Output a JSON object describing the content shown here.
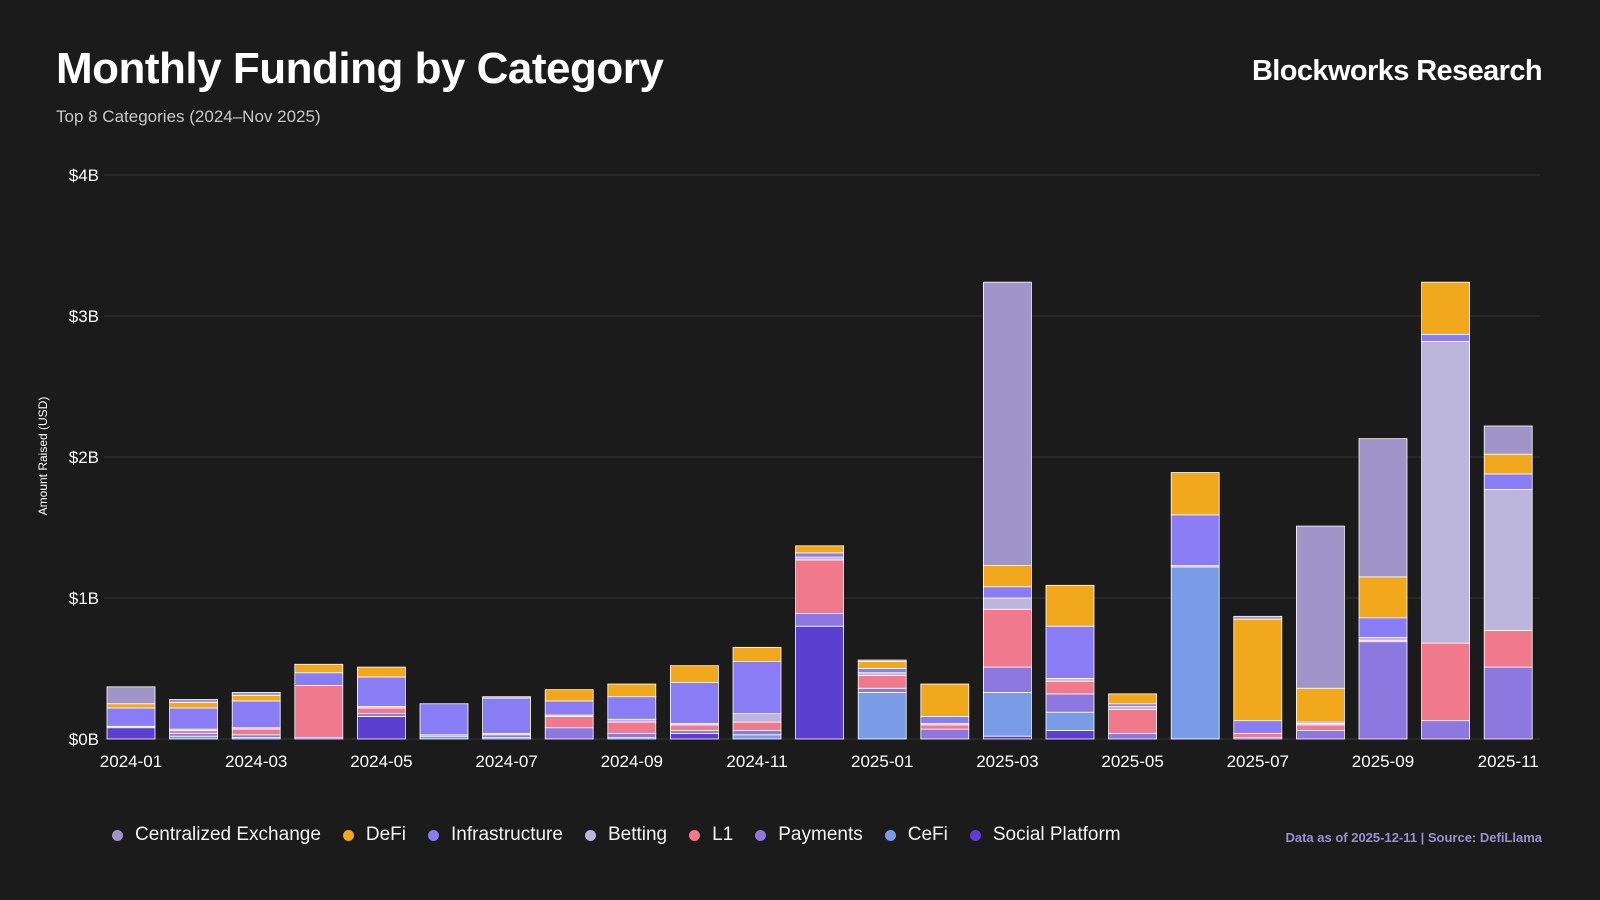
{
  "header": {
    "title": "Monthly Funding by Category",
    "subtitle": "Top 8 Categories (2024–Nov 2025)",
    "brand": "Blockworks Research"
  },
  "footer": {
    "source": "Data as of 2025-12-11 | Source: DefiLlama"
  },
  "colors": {
    "background": "#1b1b1b",
    "grid": "#333333",
    "axis_text": "#ffffff"
  },
  "chart_data": {
    "type": "bar",
    "stacked": true,
    "title": "Monthly Funding by Category",
    "subtitle": "Top 8 Categories (2024–Nov 2025)",
    "xlabel": "",
    "ylabel": "Amount Raised (USD)",
    "unit": "USD billions",
    "ylim": [
      0,
      4
    ],
    "yticks": [
      {
        "value": 0,
        "label": "$0B"
      },
      {
        "value": 1,
        "label": "$1B"
      },
      {
        "value": 2,
        "label": "$2B"
      },
      {
        "value": 3,
        "label": "$3B"
      },
      {
        "value": 4,
        "label": "$4B"
      }
    ],
    "xtick_labels": [
      "2024-01",
      "2024-03",
      "2024-05",
      "2024-07",
      "2024-09",
      "2024-11",
      "2025-01",
      "2025-03",
      "2025-05",
      "2025-07",
      "2025-09",
      "2025-11"
    ],
    "grid": true,
    "legend_position": "bottom",
    "categories": [
      "2024-01",
      "2024-02",
      "2024-03",
      "2024-04",
      "2024-05",
      "2024-06",
      "2024-07",
      "2024-08",
      "2024-09",
      "2024-10",
      "2024-11",
      "2024-12",
      "2025-01",
      "2025-02",
      "2025-03",
      "2025-04",
      "2025-05",
      "2025-06",
      "2025-07",
      "2025-08",
      "2025-09",
      "2025-10",
      "2025-11"
    ],
    "series": [
      {
        "name": "Social Platform",
        "color": "#5a3fd1",
        "values": [
          0.08,
          0,
          0,
          0,
          0.16,
          0,
          0,
          0,
          0,
          0.04,
          0,
          0.8,
          0,
          0,
          0.02,
          0.06,
          0,
          0,
          0,
          0,
          0,
          0,
          0
        ]
      },
      {
        "name": "CeFi",
        "color": "#7a9ce6",
        "values": [
          0,
          0.02,
          0.01,
          0,
          0,
          0.02,
          0.01,
          0,
          0.01,
          0,
          0.03,
          0,
          0.33,
          0,
          0.31,
          0.13,
          0,
          1.22,
          0,
          0,
          0,
          0,
          0
        ]
      },
      {
        "name": "Payments",
        "color": "#8c78df",
        "values": [
          0,
          0.02,
          0.02,
          0.01,
          0.02,
          0.01,
          0.02,
          0.08,
          0.03,
          0.02,
          0.03,
          0.09,
          0.03,
          0.07,
          0.18,
          0.13,
          0.04,
          0,
          0.01,
          0.06,
          0.69,
          0.13,
          0.51
        ]
      },
      {
        "name": "L1",
        "color": "#f07a8c",
        "values": [
          0,
          0.02,
          0.04,
          0.37,
          0.04,
          0,
          0,
          0.08,
          0.08,
          0.04,
          0.06,
          0.38,
          0.09,
          0.03,
          0.41,
          0.09,
          0.17,
          0,
          0.03,
          0.04,
          0.01,
          0.55,
          0.26
        ]
      },
      {
        "name": "Betting",
        "color": "#bdb6dc",
        "values": [
          0.01,
          0.01,
          0.01,
          0,
          0.01,
          0,
          0.01,
          0.01,
          0.02,
          0.01,
          0.06,
          0.02,
          0.02,
          0.01,
          0.08,
          0.02,
          0.02,
          0.01,
          0,
          0.01,
          0.02,
          2.14,
          1.0
        ]
      },
      {
        "name": "Infrastructure",
        "color": "#8a7cf5",
        "values": [
          0.13,
          0.15,
          0.19,
          0.09,
          0.21,
          0.22,
          0.25,
          0.1,
          0.16,
          0.29,
          0.37,
          0.03,
          0.03,
          0.05,
          0.08,
          0.37,
          0.02,
          0.36,
          0.09,
          0.01,
          0.14,
          0.05,
          0.11
        ]
      },
      {
        "name": "DeFi",
        "color": "#f2a81d",
        "values": [
          0.03,
          0.04,
          0.04,
          0.06,
          0.07,
          0,
          0.01,
          0.08,
          0.09,
          0.12,
          0.1,
          0.05,
          0.05,
          0.23,
          0.15,
          0.29,
          0.07,
          0.3,
          0.72,
          0.24,
          0.29,
          0.37,
          0.14
        ]
      },
      {
        "name": "Centralized Exchange",
        "color": "#9f95c8",
        "values": [
          0.12,
          0.02,
          0.02,
          0,
          0,
          0,
          0,
          0,
          0,
          0,
          0,
          0,
          0.01,
          0,
          2.01,
          0,
          0,
          0,
          0.02,
          1.15,
          0.98,
          0,
          0.2
        ]
      }
    ],
    "legend": [
      {
        "name": "Centralized Exchange",
        "color": "#9f95c8"
      },
      {
        "name": "DeFi",
        "color": "#f2a81d"
      },
      {
        "name": "Infrastructure",
        "color": "#8a7cf5"
      },
      {
        "name": "Betting",
        "color": "#bdb6dc"
      },
      {
        "name": "L1",
        "color": "#f07a8c"
      },
      {
        "name": "Payments",
        "color": "#8c78df"
      },
      {
        "name": "CeFi",
        "color": "#7a9ce6"
      },
      {
        "name": "Social Platform",
        "color": "#5a3fd1"
      }
    ]
  }
}
